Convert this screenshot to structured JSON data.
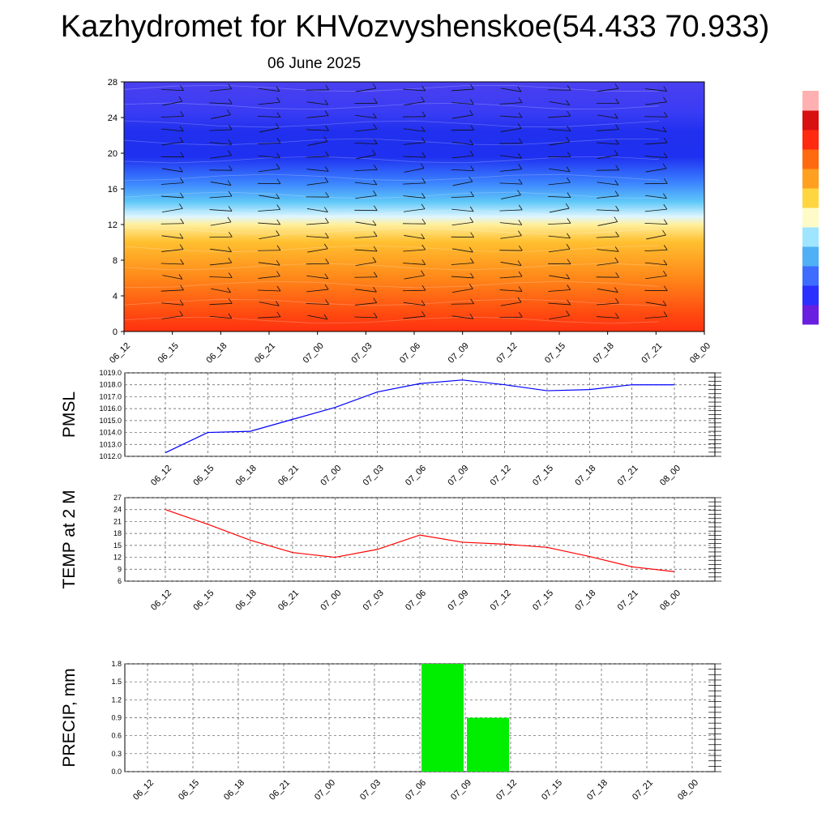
{
  "title": "Kazhydromet for KHVozvyshenskoe(54.433 70.933)",
  "date": "06 June 2025",
  "chart_data": [
    {
      "type": "heatmap",
      "title": "",
      "x_ticks": [
        "06_12",
        "06_15",
        "06_18",
        "06_21",
        "07_00",
        "07_03",
        "07_06",
        "07_09",
        "07_12",
        "07_15",
        "07_18",
        "07_21",
        "08_00"
      ],
      "y_ticks": [
        0,
        4,
        8,
        12,
        16,
        20,
        24,
        28
      ],
      "ylim": [
        0,
        28
      ],
      "colorbar": [
        "#6a1fe0",
        "#2a30ff",
        "#3e6cff",
        "#4fb0f5",
        "#9fe5ff",
        "#fffbc8",
        "#ffd640",
        "#ffa020",
        "#ff6a10",
        "#ff2a10",
        "#d81010",
        "#ffb0b0"
      ],
      "overlay": "wind barbs"
    },
    {
      "type": "line",
      "ylabel": "PMSL",
      "x": [
        "06_12",
        "06_15",
        "06_18",
        "06_21",
        "07_00",
        "07_03",
        "07_06",
        "07_09",
        "07_12",
        "07_15",
        "07_18",
        "07_21",
        "08_00"
      ],
      "y_ticks": [
        "1012.0",
        "1013.0",
        "1014.0",
        "1015.0",
        "1016.0",
        "1017.0",
        "1018.0",
        "1019.0"
      ],
      "ylim": [
        1012,
        1019
      ],
      "series": [
        {
          "values": [
            1012.3,
            1014.0,
            1014.1,
            1015.1,
            1016.1,
            1017.4,
            1018.1,
            1018.4,
            1018.0,
            1017.5,
            1017.6,
            1018.0,
            1018.0
          ],
          "color": "#0000ff"
        }
      ],
      "grid": true
    },
    {
      "type": "line",
      "ylabel": "TEMP at 2 M",
      "x": [
        "06_12",
        "06_15",
        "06_18",
        "06_21",
        "07_00",
        "07_03",
        "07_06",
        "07_09",
        "07_12",
        "07_15",
        "07_18",
        "07_21",
        "08_00"
      ],
      "y_ticks": [
        "6",
        "9",
        "12",
        "15",
        "18",
        "21",
        "24",
        "27"
      ],
      "ylim": [
        6,
        27
      ],
      "series": [
        {
          "values": [
            24.0,
            20.3,
            16.3,
            13.2,
            12.0,
            14.0,
            17.6,
            15.8,
            15.3,
            14.5,
            12.2,
            9.6,
            8.4
          ],
          "color": "#ff0000"
        }
      ],
      "grid": true
    },
    {
      "type": "bar",
      "ylabel": "PRECIP, mm",
      "categories": [
        "06_12",
        "06_15",
        "06_18",
        "06_21",
        "07_00",
        "07_03",
        "07_06",
        "07_09",
        "07_12",
        "07_15",
        "07_18",
        "07_21",
        "08_00"
      ],
      "y_ticks": [
        "0.0",
        "0.3",
        "0.6",
        "0.9",
        "1.2",
        "1.5",
        "1.8"
      ],
      "ylim": [
        0,
        1.8
      ],
      "values": [
        0,
        0,
        0,
        0,
        0,
        0,
        0,
        1.8,
        0.9,
        0,
        0,
        0,
        0
      ],
      "color": "#00ee00",
      "grid": true
    }
  ]
}
